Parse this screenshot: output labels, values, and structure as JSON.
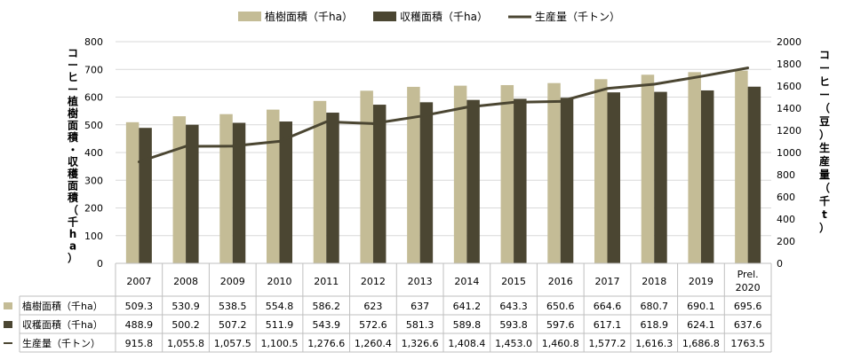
{
  "chart_data": {
    "type": "bar",
    "categories": [
      "2007",
      "2008",
      "2009",
      "2010",
      "2011",
      "2012",
      "2013",
      "2014",
      "2015",
      "2016",
      "2017",
      "2018",
      "2019",
      "Prel.\n2020"
    ],
    "series": [
      {
        "name": "植樹面積（千ha）",
        "type": "bar",
        "axis": "left",
        "color": "#c4bc96",
        "values": [
          509.3,
          530.9,
          538.5,
          554.8,
          586.2,
          623,
          637,
          641.2,
          643.3,
          650.6,
          664.6,
          680.7,
          690.1,
          695.6
        ],
        "table_values": [
          "509.3",
          "530.9",
          "538.5",
          "554.8",
          "586.2",
          "623",
          "637",
          "641.2",
          "643.3",
          "650.6",
          "664.6",
          "680.7",
          "690.1",
          "695.6"
        ]
      },
      {
        "name": "収穫面積（千ha）",
        "type": "bar",
        "axis": "left",
        "color": "#4b4632",
        "values": [
          488.9,
          500.2,
          507.2,
          511.9,
          543.9,
          572.6,
          581.3,
          589.8,
          593.8,
          597.6,
          617.1,
          618.9,
          624.1,
          637.6
        ],
        "table_values": [
          "488.9",
          "500.2",
          "507.2",
          "511.9",
          "543.9",
          "572.6",
          "581.3",
          "589.8",
          "593.8",
          "597.6",
          "617.1",
          "618.9",
          "624.1",
          "637.6"
        ]
      },
      {
        "name": "生産量（千トン）",
        "type": "line",
        "axis": "right",
        "color": "#4b4632",
        "values": [
          915.8,
          1055.8,
          1057.5,
          1100.5,
          1276.6,
          1260.4,
          1326.6,
          1408.4,
          1453.0,
          1460.8,
          1577.2,
          1616.3,
          1686.8,
          1763.5
        ],
        "table_values": [
          "915.8",
          "1,055.8",
          "1,057.5",
          "1,100.5",
          "1,276.6",
          "1,260.4",
          "1,326.6",
          "1,408.4",
          "1,453.0",
          "1,460.8",
          "1,577.2",
          "1,616.3",
          "1,686.8",
          "1763.5"
        ]
      }
    ],
    "ylabel": "コーヒー植樹面積・収穫面積（千ha）",
    "y2label": "コーヒー（豆）生産量（千t）",
    "ylim": [
      0,
      800
    ],
    "y2lim": [
      0,
      2000
    ],
    "yticks": [
      "0",
      "100",
      "200",
      "300",
      "400",
      "500",
      "600",
      "700",
      "800"
    ],
    "y2ticks": [
      "0",
      "200",
      "400",
      "600",
      "800",
      "1000",
      "1200",
      "1400",
      "1600",
      "1800",
      "2000"
    ],
    "grid": true,
    "legend": "top-center",
    "data_table": true
  }
}
